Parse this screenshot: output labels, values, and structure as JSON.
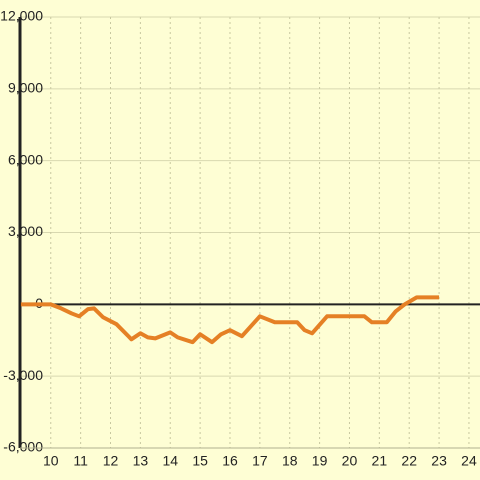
{
  "chart_data": {
    "type": "line",
    "x": [
      9.0,
      10.0,
      10.35,
      10.7,
      10.95,
      11.25,
      11.45,
      11.75,
      12.2,
      12.7,
      13.0,
      13.25,
      13.5,
      14.0,
      14.25,
      14.75,
      15.0,
      15.4,
      15.7,
      16.0,
      16.4,
      17.0,
      17.5,
      18.25,
      18.5,
      18.75,
      19.25,
      20.5,
      20.75,
      21.25,
      21.55,
      21.85,
      22.25,
      23.0
    ],
    "series": [
      {
        "color": "#e58025",
        "values": [
          0,
          0,
          -170,
          -380,
          -500,
          -200,
          -170,
          -540,
          -830,
          -1460,
          -1210,
          -1380,
          -1420,
          -1170,
          -1380,
          -1580,
          -1250,
          -1580,
          -1250,
          -1080,
          -1330,
          -500,
          -750,
          -750,
          -1080,
          -1210,
          -500,
          -500,
          -750,
          -750,
          -290,
          0,
          290,
          290
        ]
      }
    ],
    "xlim": [
      8.97,
      24.37
    ],
    "xticks": [
      10,
      11,
      12,
      13,
      14,
      15,
      16,
      17,
      18,
      19,
      20,
      21,
      22,
      23,
      24
    ],
    "ylim": [
      -6000,
      12000
    ],
    "yticks": [
      {
        "value": -6000,
        "label": "-6,000"
      },
      {
        "value": -3000,
        "label": "-3,000"
      },
      0,
      {
        "value": 3000,
        "label": "3,000"
      },
      {
        "value": 6000,
        "label": "6,000"
      },
      {
        "value": 9000,
        "label": "9,000"
      },
      {
        "value": 12000,
        "label": "12,000"
      }
    ],
    "grid": true
  }
}
